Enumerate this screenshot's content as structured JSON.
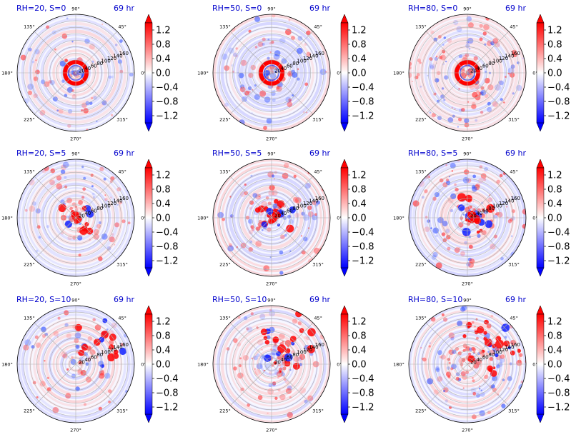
{
  "figure": {
    "title_color": "#0000cc",
    "colormap": "bwr",
    "colors": {
      "negative": "#0000ff",
      "zero": "#ffffff",
      "positive": "#ff0000"
    }
  },
  "chart_data": [
    {
      "type": "heatmap",
      "coordinate_system": "polar",
      "title": "RH=20, S=0",
      "time_label": "69 hr",
      "rh": 20,
      "s": 0
    },
    {
      "type": "heatmap",
      "coordinate_system": "polar",
      "title": "RH=50, S=0",
      "time_label": "69 hr",
      "rh": 50,
      "s": 0
    },
    {
      "type": "heatmap",
      "coordinate_system": "polar",
      "title": "RH=80, S=0",
      "time_label": "69 hr",
      "rh": 80,
      "s": 0
    },
    {
      "type": "heatmap",
      "coordinate_system": "polar",
      "title": "RH=20, S=5",
      "time_label": "69 hr",
      "rh": 20,
      "s": 5
    },
    {
      "type": "heatmap",
      "coordinate_system": "polar",
      "title": "RH=50, S=5",
      "time_label": "69 hr",
      "rh": 50,
      "s": 5
    },
    {
      "type": "heatmap",
      "coordinate_system": "polar",
      "title": "RH=80, S=5",
      "time_label": "69 hr",
      "rh": 80,
      "s": 5
    },
    {
      "type": "heatmap",
      "coordinate_system": "polar",
      "title": "RH=20, S=10",
      "time_label": "69 hr",
      "rh": 20,
      "s": 10
    },
    {
      "type": "heatmap",
      "coordinate_system": "polar",
      "title": "RH=50, S=10",
      "time_label": "69 hr",
      "rh": 50,
      "s": 10
    },
    {
      "type": "heatmap",
      "coordinate_system": "polar",
      "title": "RH=80, S=10",
      "time_label": "69 hr",
      "rh": 80,
      "s": 10
    }
  ],
  "shared": {
    "angle_ticks": [
      "0°",
      "45°",
      "90°",
      "135°",
      "180°",
      "225°",
      "270°",
      "315°"
    ],
    "radial_ticks": [
      "20",
      "40",
      "60",
      "80",
      "100",
      "120",
      "140",
      "160"
    ],
    "rlim": [
      0,
      180
    ],
    "colorbar": {
      "range": [
        -1.4,
        1.4
      ],
      "extend": "both",
      "ticks": [
        "1.2",
        "0.8",
        "0.4",
        "0.0",
        "−0.4",
        "−0.8",
        "−1.2"
      ]
    },
    "grid": true
  }
}
